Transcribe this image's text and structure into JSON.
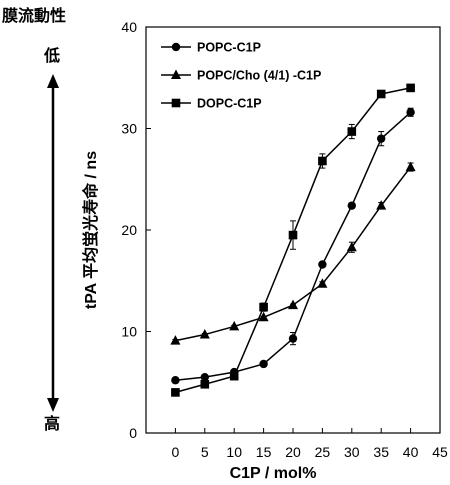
{
  "side_labels": {
    "fluidity_title": "膜流動性",
    "low": "低",
    "high": "高"
  },
  "chart_data": {
    "type": "line",
    "title": "",
    "xlabel": "C1P / mol%",
    "ylabel": "tPA 平均蛍光寿命 / ns",
    "xlim": [
      -5,
      45
    ],
    "ylim": [
      0,
      40
    ],
    "x_ticks": [
      0,
      5,
      10,
      15,
      20,
      25,
      30,
      35,
      40,
      45
    ],
    "y_ticks": [
      0,
      10,
      20,
      30,
      40
    ],
    "grid": false,
    "legend_position": "top-left",
    "series": [
      {
        "name": "POPC-C1P",
        "marker": "circle",
        "x": [
          0,
          5,
          10,
          15,
          20,
          25,
          30,
          35,
          40
        ],
        "y": [
          5.2,
          5.5,
          6.0,
          6.8,
          9.3,
          16.6,
          22.4,
          29.0,
          31.6
        ],
        "error": [
          0.1,
          0.1,
          0.1,
          0.1,
          0.6,
          0.2,
          0.2,
          0.7,
          0.4
        ]
      },
      {
        "name": "POPC/Cho (4/1) -C1P",
        "marker": "triangle",
        "x": [
          0,
          5,
          10,
          15,
          20,
          25,
          30,
          35,
          40
        ],
        "y": [
          9.1,
          9.7,
          10.5,
          11.4,
          12.6,
          14.7,
          18.3,
          22.4,
          26.2
        ],
        "error": [
          0.1,
          0.1,
          0.1,
          0.1,
          0.1,
          0.2,
          0.5,
          0.3,
          0.4
        ]
      },
      {
        "name": "DOPC-C1P",
        "marker": "square",
        "x": [
          0,
          5,
          10,
          15,
          20,
          25,
          30,
          35,
          40
        ],
        "y": [
          4.0,
          4.8,
          5.6,
          12.4,
          19.5,
          26.8,
          29.7,
          33.4,
          34.0
        ],
        "error": [
          0.1,
          0.1,
          0.2,
          0.4,
          1.4,
          0.7,
          0.7,
          0.2,
          0.2
        ]
      }
    ]
  }
}
